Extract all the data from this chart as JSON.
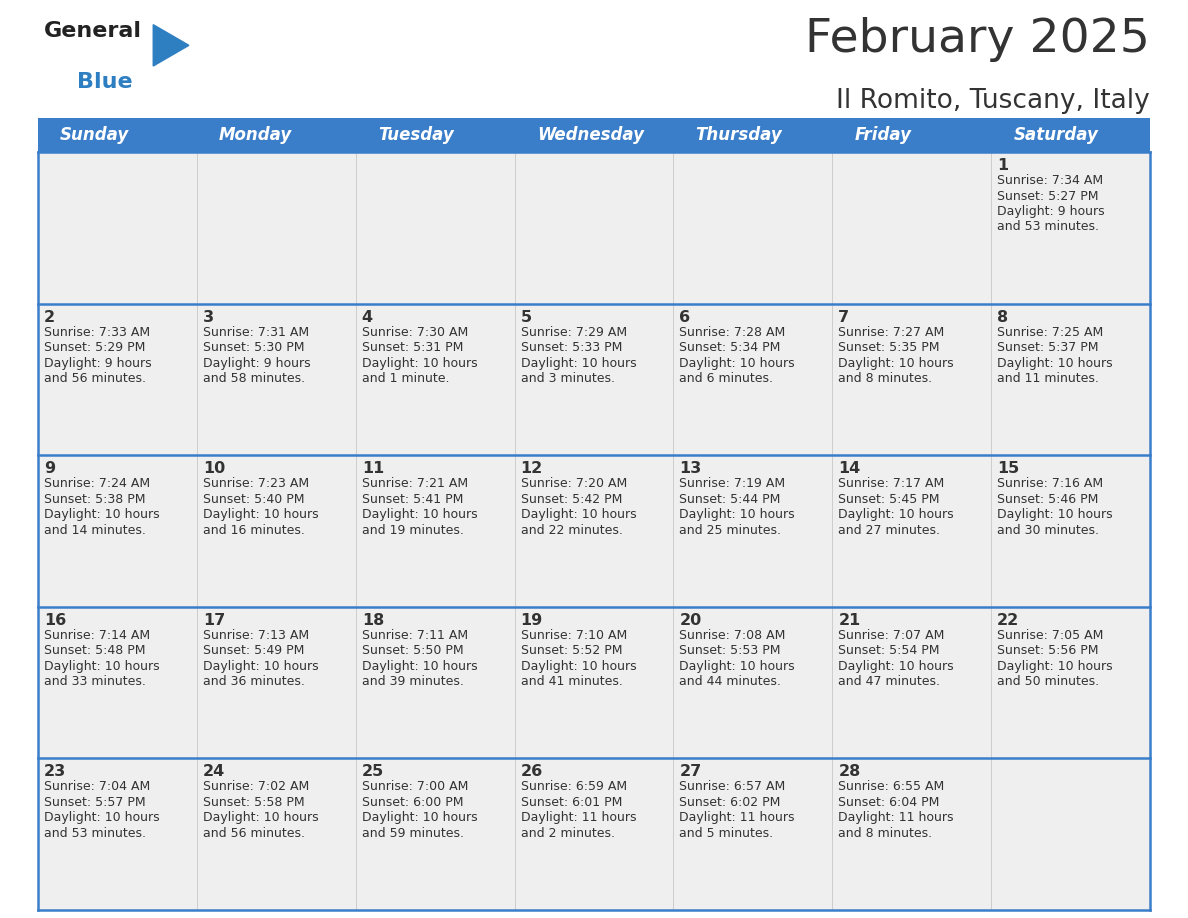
{
  "title": "February 2025",
  "subtitle": "Il Romito, Tuscany, Italy",
  "days_of_week": [
    "Sunday",
    "Monday",
    "Tuesday",
    "Wednesday",
    "Thursday",
    "Friday",
    "Saturday"
  ],
  "header_bg": "#3A7DC9",
  "header_text": "#FFFFFF",
  "cell_bg": "#EFEFEF",
  "border_color": "#3A7DC9",
  "sep_color": "#AAAAAA",
  "text_color": "#333333",
  "logo_general_color": "#222222",
  "logo_blue_color": "#2E7EC2",
  "calendar_data": [
    {
      "day": 1,
      "col": 6,
      "row": 0,
      "sunrise": "7:34 AM",
      "sunset": "5:27 PM",
      "daylight": "9 hours and 53 minutes."
    },
    {
      "day": 2,
      "col": 0,
      "row": 1,
      "sunrise": "7:33 AM",
      "sunset": "5:29 PM",
      "daylight": "9 hours and 56 minutes."
    },
    {
      "day": 3,
      "col": 1,
      "row": 1,
      "sunrise": "7:31 AM",
      "sunset": "5:30 PM",
      "daylight": "9 hours and 58 minutes."
    },
    {
      "day": 4,
      "col": 2,
      "row": 1,
      "sunrise": "7:30 AM",
      "sunset": "5:31 PM",
      "daylight": "10 hours and 1 minute."
    },
    {
      "day": 5,
      "col": 3,
      "row": 1,
      "sunrise": "7:29 AM",
      "sunset": "5:33 PM",
      "daylight": "10 hours and 3 minutes."
    },
    {
      "day": 6,
      "col": 4,
      "row": 1,
      "sunrise": "7:28 AM",
      "sunset": "5:34 PM",
      "daylight": "10 hours and 6 minutes."
    },
    {
      "day": 7,
      "col": 5,
      "row": 1,
      "sunrise": "7:27 AM",
      "sunset": "5:35 PM",
      "daylight": "10 hours and 8 minutes."
    },
    {
      "day": 8,
      "col": 6,
      "row": 1,
      "sunrise": "7:25 AM",
      "sunset": "5:37 PM",
      "daylight": "10 hours and 11 minutes."
    },
    {
      "day": 9,
      "col": 0,
      "row": 2,
      "sunrise": "7:24 AM",
      "sunset": "5:38 PM",
      "daylight": "10 hours and 14 minutes."
    },
    {
      "day": 10,
      "col": 1,
      "row": 2,
      "sunrise": "7:23 AM",
      "sunset": "5:40 PM",
      "daylight": "10 hours and 16 minutes."
    },
    {
      "day": 11,
      "col": 2,
      "row": 2,
      "sunrise": "7:21 AM",
      "sunset": "5:41 PM",
      "daylight": "10 hours and 19 minutes."
    },
    {
      "day": 12,
      "col": 3,
      "row": 2,
      "sunrise": "7:20 AM",
      "sunset": "5:42 PM",
      "daylight": "10 hours and 22 minutes."
    },
    {
      "day": 13,
      "col": 4,
      "row": 2,
      "sunrise": "7:19 AM",
      "sunset": "5:44 PM",
      "daylight": "10 hours and 25 minutes."
    },
    {
      "day": 14,
      "col": 5,
      "row": 2,
      "sunrise": "7:17 AM",
      "sunset": "5:45 PM",
      "daylight": "10 hours and 27 minutes."
    },
    {
      "day": 15,
      "col": 6,
      "row": 2,
      "sunrise": "7:16 AM",
      "sunset": "5:46 PM",
      "daylight": "10 hours and 30 minutes."
    },
    {
      "day": 16,
      "col": 0,
      "row": 3,
      "sunrise": "7:14 AM",
      "sunset": "5:48 PM",
      "daylight": "10 hours and 33 minutes."
    },
    {
      "day": 17,
      "col": 1,
      "row": 3,
      "sunrise": "7:13 AM",
      "sunset": "5:49 PM",
      "daylight": "10 hours and 36 minutes."
    },
    {
      "day": 18,
      "col": 2,
      "row": 3,
      "sunrise": "7:11 AM",
      "sunset": "5:50 PM",
      "daylight": "10 hours and 39 minutes."
    },
    {
      "day": 19,
      "col": 3,
      "row": 3,
      "sunrise": "7:10 AM",
      "sunset": "5:52 PM",
      "daylight": "10 hours and 41 minutes."
    },
    {
      "day": 20,
      "col": 4,
      "row": 3,
      "sunrise": "7:08 AM",
      "sunset": "5:53 PM",
      "daylight": "10 hours and 44 minutes."
    },
    {
      "day": 21,
      "col": 5,
      "row": 3,
      "sunrise": "7:07 AM",
      "sunset": "5:54 PM",
      "daylight": "10 hours and 47 minutes."
    },
    {
      "day": 22,
      "col": 6,
      "row": 3,
      "sunrise": "7:05 AM",
      "sunset": "5:56 PM",
      "daylight": "10 hours and 50 minutes."
    },
    {
      "day": 23,
      "col": 0,
      "row": 4,
      "sunrise": "7:04 AM",
      "sunset": "5:57 PM",
      "daylight": "10 hours and 53 minutes."
    },
    {
      "day": 24,
      "col": 1,
      "row": 4,
      "sunrise": "7:02 AM",
      "sunset": "5:58 PM",
      "daylight": "10 hours and 56 minutes."
    },
    {
      "day": 25,
      "col": 2,
      "row": 4,
      "sunrise": "7:00 AM",
      "sunset": "6:00 PM",
      "daylight": "10 hours and 59 minutes."
    },
    {
      "day": 26,
      "col": 3,
      "row": 4,
      "sunrise": "6:59 AM",
      "sunset": "6:01 PM",
      "daylight": "11 hours and 2 minutes."
    },
    {
      "day": 27,
      "col": 4,
      "row": 4,
      "sunrise": "6:57 AM",
      "sunset": "6:02 PM",
      "daylight": "11 hours and 5 minutes."
    },
    {
      "day": 28,
      "col": 5,
      "row": 4,
      "sunrise": "6:55 AM",
      "sunset": "6:04 PM",
      "daylight": "11 hours and 8 minutes."
    }
  ],
  "fig_width": 11.88,
  "fig_height": 9.18,
  "dpi": 100
}
